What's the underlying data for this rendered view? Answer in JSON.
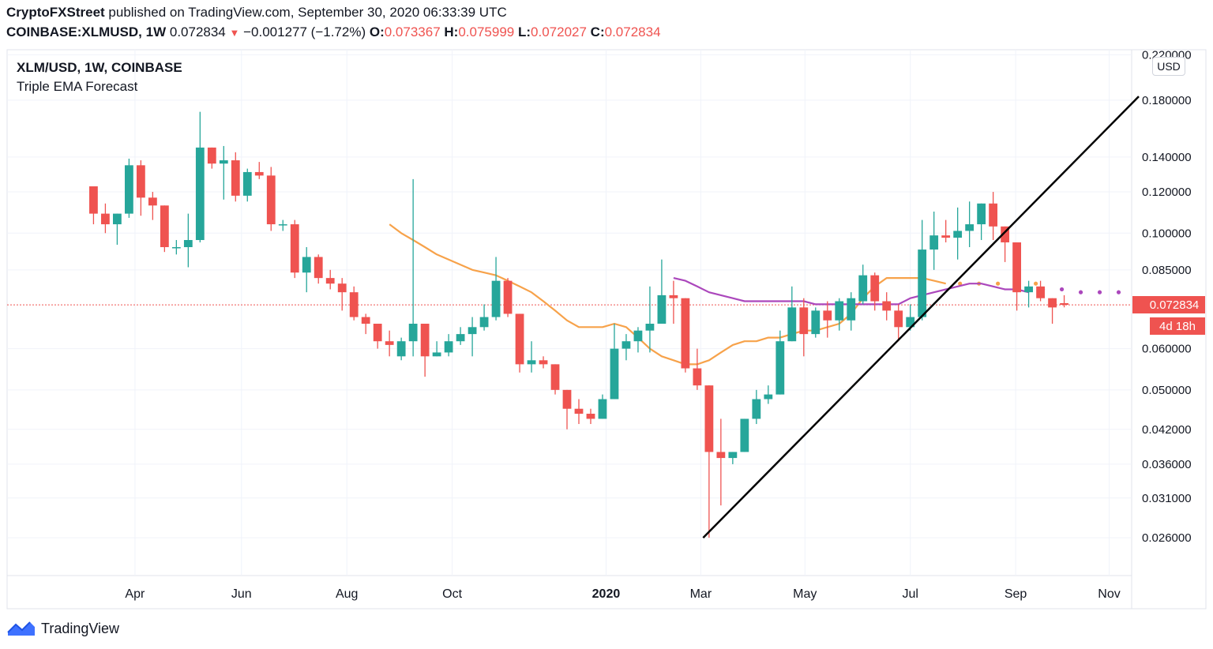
{
  "header": {
    "author": "CryptoFXStreet",
    "published_text": " published on TradingView.com, September 30, 2020 06:33:39 UTC",
    "symbol_line": "COINBASE:XLMUSD, 1W",
    "last_price": "0.072834",
    "change": "−0.001277 (−1.72%)",
    "o_label": "O:",
    "o_value": "0.073367",
    "h_label": "H:",
    "h_value": "0.075999",
    "l_label": "L:",
    "l_value": "0.072027",
    "c_label": "C:",
    "c_value": "0.072834"
  },
  "legend": {
    "title": "XLM/USD, 1W, COINBASE",
    "indicator": "Triple EMA Forecast"
  },
  "price_axis": {
    "currency": "USD",
    "current_price_label": "0.072834",
    "countdown_label": "4d 18h"
  },
  "brand": {
    "name": "TradingView"
  },
  "colors": {
    "up": "#26a69a",
    "down": "#ef5350",
    "ema_fast": "#f7a24a",
    "ema_slow": "#ab47bc",
    "trendline": "#000000",
    "price_line": "#ef5350"
  },
  "chart_data": {
    "type": "candlestick",
    "title": "XLM/USD, 1W, COINBASE",
    "y_scale": "log",
    "ylim": [
      0.022,
      0.225
    ],
    "y_ticks": [
      0.22,
      0.18,
      0.14,
      0.12,
      0.1,
      0.085,
      0.06,
      0.05,
      0.042,
      0.036,
      0.031,
      0.026
    ],
    "y_tick_labels": [
      "0.220000",
      "0.180000",
      "0.140000",
      "0.120000",
      "0.100000",
      "0.085000",
      "0.060000",
      "0.050000",
      "0.042000",
      "0.036000",
      "0.031000",
      "0.026000"
    ],
    "x_range_weeks": [
      -7.3,
      87.7
    ],
    "x_ticks": [
      {
        "label": "Apr",
        "week": 3.5
      },
      {
        "label": "Jun",
        "week": 12.5
      },
      {
        "label": "Aug",
        "week": 21.4
      },
      {
        "label": "Oct",
        "week": 30.3
      },
      {
        "label": "2020",
        "week": 43.3,
        "bold": true
      },
      {
        "label": "Mar",
        "week": 51.3
      },
      {
        "label": "May",
        "week": 60.1
      },
      {
        "label": "Jul",
        "week": 69.0
      },
      {
        "label": "Sep",
        "week": 77.9
      },
      {
        "label": "Nov",
        "week": 85.8
      }
    ],
    "candles": [
      {
        "o": 0.123,
        "h": 0.123,
        "l": 0.104,
        "c": 0.109
      },
      {
        "o": 0.109,
        "h": 0.114,
        "l": 0.1,
        "c": 0.104
      },
      {
        "o": 0.104,
        "h": 0.109,
        "l": 0.095,
        "c": 0.109
      },
      {
        "o": 0.109,
        "h": 0.139,
        "l": 0.107,
        "c": 0.135
      },
      {
        "o": 0.135,
        "h": 0.138,
        "l": 0.108,
        "c": 0.117
      },
      {
        "o": 0.117,
        "h": 0.12,
        "l": 0.106,
        "c": 0.113
      },
      {
        "o": 0.113,
        "h": 0.113,
        "l": 0.092,
        "c": 0.094
      },
      {
        "o": 0.094,
        "h": 0.097,
        "l": 0.091,
        "c": 0.094
      },
      {
        "o": 0.094,
        "h": 0.109,
        "l": 0.086,
        "c": 0.097
      },
      {
        "o": 0.097,
        "h": 0.171,
        "l": 0.096,
        "c": 0.146
      },
      {
        "o": 0.146,
        "h": 0.146,
        "l": 0.133,
        "c": 0.136
      },
      {
        "o": 0.136,
        "h": 0.147,
        "l": 0.116,
        "c": 0.138
      },
      {
        "o": 0.138,
        "h": 0.143,
        "l": 0.115,
        "c": 0.118
      },
      {
        "o": 0.118,
        "h": 0.133,
        "l": 0.115,
        "c": 0.131
      },
      {
        "o": 0.131,
        "h": 0.137,
        "l": 0.127,
        "c": 0.129
      },
      {
        "o": 0.129,
        "h": 0.134,
        "l": 0.101,
        "c": 0.104
      },
      {
        "o": 0.104,
        "h": 0.106,
        "l": 0.101,
        "c": 0.104
      },
      {
        "o": 0.104,
        "h": 0.106,
        "l": 0.082,
        "c": 0.084
      },
      {
        "o": 0.084,
        "h": 0.094,
        "l": 0.077,
        "c": 0.09
      },
      {
        "o": 0.09,
        "h": 0.091,
        "l": 0.08,
        "c": 0.082
      },
      {
        "o": 0.082,
        "h": 0.085,
        "l": 0.078,
        "c": 0.08
      },
      {
        "o": 0.08,
        "h": 0.082,
        "l": 0.071,
        "c": 0.077
      },
      {
        "o": 0.077,
        "h": 0.079,
        "l": 0.068,
        "c": 0.069
      },
      {
        "o": 0.069,
        "h": 0.07,
        "l": 0.064,
        "c": 0.067
      },
      {
        "o": 0.067,
        "h": 0.067,
        "l": 0.06,
        "c": 0.062
      },
      {
        "o": 0.062,
        "h": 0.065,
        "l": 0.058,
        "c": 0.061
      },
      {
        "o": 0.058,
        "h": 0.063,
        "l": 0.057,
        "c": 0.062
      },
      {
        "o": 0.062,
        "h": 0.127,
        "l": 0.058,
        "c": 0.067
      },
      {
        "o": 0.067,
        "h": 0.067,
        "l": 0.053,
        "c": 0.058
      },
      {
        "o": 0.058,
        "h": 0.062,
        "l": 0.058,
        "c": 0.059
      },
      {
        "o": 0.059,
        "h": 0.064,
        "l": 0.058,
        "c": 0.062
      },
      {
        "o": 0.062,
        "h": 0.066,
        "l": 0.061,
        "c": 0.064
      },
      {
        "o": 0.064,
        "h": 0.069,
        "l": 0.058,
        "c": 0.066
      },
      {
        "o": 0.066,
        "h": 0.073,
        "l": 0.065,
        "c": 0.069
      },
      {
        "o": 0.069,
        "h": 0.09,
        "l": 0.068,
        "c": 0.081
      },
      {
        "o": 0.081,
        "h": 0.082,
        "l": 0.069,
        "c": 0.07
      },
      {
        "o": 0.07,
        "h": 0.07,
        "l": 0.054,
        "c": 0.056
      },
      {
        "o": 0.056,
        "h": 0.062,
        "l": 0.054,
        "c": 0.057
      },
      {
        "o": 0.057,
        "h": 0.058,
        "l": 0.055,
        "c": 0.056
      },
      {
        "o": 0.056,
        "h": 0.056,
        "l": 0.049,
        "c": 0.05
      },
      {
        "o": 0.05,
        "h": 0.05,
        "l": 0.042,
        "c": 0.046
      },
      {
        "o": 0.046,
        "h": 0.048,
        "l": 0.043,
        "c": 0.045
      },
      {
        "o": 0.045,
        "h": 0.046,
        "l": 0.043,
        "c": 0.044
      },
      {
        "o": 0.044,
        "h": 0.049,
        "l": 0.044,
        "c": 0.048
      },
      {
        "o": 0.048,
        "h": 0.067,
        "l": 0.048,
        "c": 0.06
      },
      {
        "o": 0.06,
        "h": 0.064,
        "l": 0.057,
        "c": 0.062
      },
      {
        "o": 0.062,
        "h": 0.066,
        "l": 0.059,
        "c": 0.065
      },
      {
        "o": 0.065,
        "h": 0.079,
        "l": 0.059,
        "c": 0.067
      },
      {
        "o": 0.067,
        "h": 0.089,
        "l": 0.067,
        "c": 0.076
      },
      {
        "o": 0.076,
        "h": 0.081,
        "l": 0.067,
        "c": 0.075
      },
      {
        "o": 0.075,
        "h": 0.075,
        "l": 0.054,
        "c": 0.055
      },
      {
        "o": 0.055,
        "h": 0.06,
        "l": 0.05,
        "c": 0.051
      },
      {
        "o": 0.051,
        "h": 0.051,
        "l": 0.026,
        "c": 0.038
      },
      {
        "o": 0.038,
        "h": 0.044,
        "l": 0.03,
        "c": 0.037
      },
      {
        "o": 0.037,
        "h": 0.038,
        "l": 0.036,
        "c": 0.038
      },
      {
        "o": 0.038,
        "h": 0.044,
        "l": 0.038,
        "c": 0.044
      },
      {
        "o": 0.044,
        "h": 0.05,
        "l": 0.043,
        "c": 0.048
      },
      {
        "o": 0.048,
        "h": 0.051,
        "l": 0.047,
        "c": 0.049
      },
      {
        "o": 0.049,
        "h": 0.065,
        "l": 0.049,
        "c": 0.062
      },
      {
        "o": 0.062,
        "h": 0.079,
        "l": 0.062,
        "c": 0.072
      },
      {
        "o": 0.072,
        "h": 0.075,
        "l": 0.058,
        "c": 0.064
      },
      {
        "o": 0.064,
        "h": 0.072,
        "l": 0.063,
        "c": 0.071
      },
      {
        "o": 0.071,
        "h": 0.074,
        "l": 0.063,
        "c": 0.068
      },
      {
        "o": 0.068,
        "h": 0.075,
        "l": 0.065,
        "c": 0.074
      },
      {
        "o": 0.068,
        "h": 0.077,
        "l": 0.065,
        "c": 0.075
      },
      {
        "o": 0.074,
        "h": 0.087,
        "l": 0.073,
        "c": 0.083
      },
      {
        "o": 0.083,
        "h": 0.084,
        "l": 0.071,
        "c": 0.074
      },
      {
        "o": 0.074,
        "h": 0.077,
        "l": 0.068,
        "c": 0.071
      },
      {
        "o": 0.071,
        "h": 0.073,
        "l": 0.062,
        "c": 0.066
      },
      {
        "o": 0.066,
        "h": 0.073,
        "l": 0.065,
        "c": 0.069
      },
      {
        "o": 0.069,
        "h": 0.106,
        "l": 0.068,
        "c": 0.093
      },
      {
        "o": 0.093,
        "h": 0.11,
        "l": 0.085,
        "c": 0.099
      },
      {
        "o": 0.099,
        "h": 0.106,
        "l": 0.096,
        "c": 0.098
      },
      {
        "o": 0.098,
        "h": 0.112,
        "l": 0.089,
        "c": 0.101
      },
      {
        "o": 0.101,
        "h": 0.115,
        "l": 0.094,
        "c": 0.104
      },
      {
        "o": 0.104,
        "h": 0.114,
        "l": 0.097,
        "c": 0.114
      },
      {
        "o": 0.114,
        "h": 0.12,
        "l": 0.097,
        "c": 0.103
      },
      {
        "o": 0.103,
        "h": 0.103,
        "l": 0.088,
        "c": 0.096
      },
      {
        "o": 0.096,
        "h": 0.096,
        "l": 0.071,
        "c": 0.077
      },
      {
        "o": 0.077,
        "h": 0.081,
        "l": 0.072,
        "c": 0.079
      },
      {
        "o": 0.079,
        "h": 0.081,
        "l": 0.074,
        "c": 0.075
      },
      {
        "o": 0.075,
        "h": 0.075,
        "l": 0.067,
        "c": 0.072
      },
      {
        "o": 0.073367,
        "h": 0.075999,
        "l": 0.072027,
        "c": 0.072834
      }
    ],
    "ema_fast": {
      "name": "EMA (orange)",
      "start_week": 25,
      "values": [
        0.104,
        0.1,
        0.097,
        0.094,
        0.091,
        0.089,
        0.087,
        0.085,
        0.084,
        0.083,
        0.081,
        0.079,
        0.077,
        0.074,
        0.071,
        0.068,
        0.066,
        0.066,
        0.066,
        0.067,
        0.066,
        0.063,
        0.06,
        0.058,
        0.057,
        0.056,
        0.056,
        0.057,
        0.059,
        0.061,
        0.062,
        0.062,
        0.063,
        0.063,
        0.064,
        0.065,
        0.065,
        0.066,
        0.067,
        0.07,
        0.075,
        0.079,
        0.082,
        0.082,
        0.082,
        0.082,
        0.081,
        0.08
      ],
      "forecast": [
        0.08,
        0.08,
        0.08,
        0.08,
        0.08
      ]
    },
    "ema_slow": {
      "name": "EMA (purple)",
      "start_week": 49,
      "values": [
        0.082,
        0.081,
        0.079,
        0.077,
        0.076,
        0.075,
        0.074,
        0.074,
        0.074,
        0.074,
        0.074,
        0.074,
        0.073,
        0.073,
        0.073,
        0.073,
        0.073,
        0.073,
        0.073,
        0.073,
        0.075,
        0.076,
        0.077,
        0.078,
        0.079,
        0.08,
        0.08,
        0.079,
        0.078,
        0.078,
        0.077
      ],
      "forecast": [
        0.078,
        0.078,
        0.077,
        0.077,
        0.077
      ]
    },
    "trendline": {
      "from": {
        "week": 51.5,
        "price": 0.026
      },
      "to": {
        "week": 88.3,
        "price": 0.183
      }
    },
    "current_price": 0.072834
  }
}
